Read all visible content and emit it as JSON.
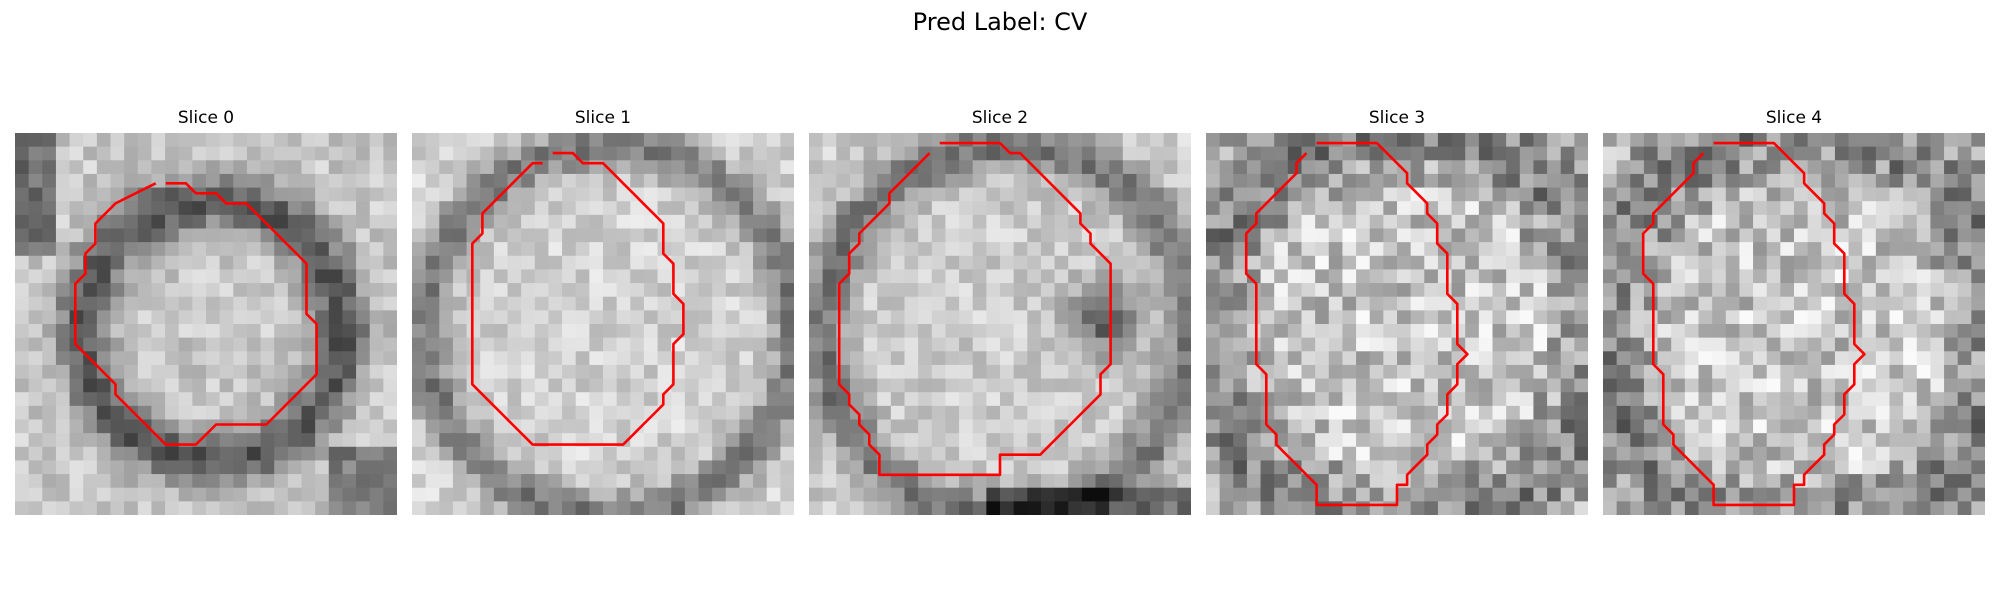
{
  "figure": {
    "title": "Pred Label: CV",
    "contour_color": "#ff0000",
    "colormap": "gray",
    "grid": 28
  },
  "panels": [
    {
      "title": "Slice 0",
      "dark": "ring",
      "seed": 11,
      "contour": [
        [
          10,
          4
        ],
        [
          12,
          4
        ],
        [
          13,
          5
        ],
        [
          15,
          5
        ],
        [
          16,
          6
        ],
        [
          18,
          6
        ],
        [
          20,
          8
        ],
        [
          21,
          9
        ],
        [
          22,
          10
        ],
        [
          23,
          11
        ],
        [
          24,
          12
        ],
        [
          24,
          14
        ],
        [
          24,
          17
        ],
        [
          25,
          18
        ],
        [
          25,
          20
        ],
        [
          25,
          23
        ],
        [
          24,
          24
        ],
        [
          23,
          25
        ],
        [
          22,
          26
        ],
        [
          21,
          27
        ],
        [
          20,
          28
        ],
        [
          19,
          28
        ],
        [
          17,
          28
        ],
        [
          15,
          28
        ],
        [
          14,
          29
        ],
        [
          13,
          30
        ],
        [
          12,
          30
        ],
        [
          10,
          30
        ],
        [
          9,
          29
        ],
        [
          8,
          28
        ],
        [
          7,
          27
        ],
        [
          6,
          26
        ],
        [
          5,
          25
        ],
        [
          5,
          24
        ],
        [
          4,
          23
        ],
        [
          3,
          22
        ],
        [
          2,
          21
        ],
        [
          1,
          20
        ],
        [
          1,
          19
        ],
        [
          1,
          18
        ],
        [
          1,
          16
        ],
        [
          1,
          14
        ],
        [
          2,
          13
        ],
        [
          2,
          11
        ],
        [
          3,
          10
        ],
        [
          3,
          8
        ],
        [
          4,
          7
        ],
        [
          5,
          6
        ],
        [
          7,
          5
        ],
        [
          9,
          4
        ]
      ]
    },
    {
      "title": "Slice 1",
      "dark": "edge",
      "seed": 23,
      "contour": [
        [
          9,
          1
        ],
        [
          11,
          1
        ],
        [
          12,
          2
        ],
        [
          14,
          2
        ],
        [
          15,
          3
        ],
        [
          16,
          4
        ],
        [
          17,
          5
        ],
        [
          18,
          6
        ],
        [
          19,
          7
        ],
        [
          20,
          8
        ],
        [
          20,
          9
        ],
        [
          20,
          11
        ],
        [
          21,
          12
        ],
        [
          21,
          15
        ],
        [
          22,
          16
        ],
        [
          22,
          19
        ],
        [
          21,
          20
        ],
        [
          21,
          22
        ],
        [
          21,
          24
        ],
        [
          20,
          25
        ],
        [
          20,
          26
        ],
        [
          19,
          27
        ],
        [
          18,
          28
        ],
        [
          17,
          29
        ],
        [
          16,
          30
        ],
        [
          15,
          30
        ],
        [
          13,
          30
        ],
        [
          11,
          30
        ],
        [
          9,
          30
        ],
        [
          7,
          30
        ],
        [
          6,
          29
        ],
        [
          5,
          28
        ],
        [
          4,
          27
        ],
        [
          3,
          26
        ],
        [
          2,
          25
        ],
        [
          1,
          24
        ],
        [
          1,
          22
        ],
        [
          1,
          20
        ],
        [
          1,
          18
        ],
        [
          1,
          16
        ],
        [
          1,
          14
        ],
        [
          1,
          12
        ],
        [
          1,
          10
        ],
        [
          2,
          9
        ],
        [
          2,
          7
        ],
        [
          3,
          6
        ],
        [
          4,
          5
        ],
        [
          5,
          4
        ],
        [
          6,
          3
        ],
        [
          7,
          2
        ],
        [
          8,
          2
        ]
      ]
    },
    {
      "title": "Slice 2",
      "dark": "blob",
      "seed": 37,
      "contour": [
        [
          8,
          0
        ],
        [
          10,
          0
        ],
        [
          12,
          0
        ],
        [
          14,
          0
        ],
        [
          15,
          1
        ],
        [
          16,
          1
        ],
        [
          17,
          2
        ],
        [
          18,
          3
        ],
        [
          19,
          4
        ],
        [
          20,
          5
        ],
        [
          21,
          6
        ],
        [
          22,
          7
        ],
        [
          22,
          8
        ],
        [
          23,
          9
        ],
        [
          23,
          10
        ],
        [
          24,
          11
        ],
        [
          25,
          12
        ],
        [
          25,
          14
        ],
        [
          25,
          16
        ],
        [
          25,
          18
        ],
        [
          25,
          20
        ],
        [
          25,
          22
        ],
        [
          24,
          23
        ],
        [
          24,
          25
        ],
        [
          23,
          26
        ],
        [
          22,
          27
        ],
        [
          21,
          28
        ],
        [
          20,
          29
        ],
        [
          19,
          30
        ],
        [
          18,
          31
        ],
        [
          16,
          31
        ],
        [
          14,
          31
        ],
        [
          14,
          33
        ],
        [
          2,
          33
        ],
        [
          2,
          31
        ],
        [
          1,
          30
        ],
        [
          1,
          29
        ],
        [
          0,
          28
        ],
        [
          0,
          27
        ],
        [
          -1,
          26
        ],
        [
          -1,
          25
        ],
        [
          -2,
          24
        ],
        [
          -2,
          22
        ],
        [
          -2,
          20
        ],
        [
          -2,
          18
        ],
        [
          -2,
          16
        ],
        [
          -2,
          14
        ],
        [
          -1,
          13
        ],
        [
          -1,
          11
        ],
        [
          0,
          10
        ],
        [
          0,
          9
        ],
        [
          1,
          8
        ],
        [
          2,
          7
        ],
        [
          3,
          6
        ],
        [
          3,
          5
        ],
        [
          4,
          4
        ],
        [
          5,
          3
        ],
        [
          6,
          2
        ],
        [
          7,
          1
        ]
      ]
    },
    {
      "title": "Slice 3",
      "dark": "noise",
      "seed": 53,
      "contour": [
        [
          6,
          0
        ],
        [
          8,
          0
        ],
        [
          10,
          0
        ],
        [
          12,
          0
        ],
        [
          13,
          1
        ],
        [
          14,
          2
        ],
        [
          15,
          3
        ],
        [
          15,
          4
        ],
        [
          16,
          5
        ],
        [
          17,
          6
        ],
        [
          17,
          7
        ],
        [
          18,
          8
        ],
        [
          18,
          10
        ],
        [
          19,
          11
        ],
        [
          19,
          13
        ],
        [
          19,
          15
        ],
        [
          20,
          16
        ],
        [
          20,
          18
        ],
        [
          20,
          20
        ],
        [
          21,
          21
        ],
        [
          20,
          22
        ],
        [
          20,
          24
        ],
        [
          19,
          25
        ],
        [
          19,
          27
        ],
        [
          18,
          28
        ],
        [
          18,
          29
        ],
        [
          17,
          30
        ],
        [
          17,
          31
        ],
        [
          16,
          32
        ],
        [
          15,
          33
        ],
        [
          15,
          34
        ],
        [
          14,
          34
        ],
        [
          14,
          36
        ],
        [
          6,
          36
        ],
        [
          6,
          34
        ],
        [
          5,
          33
        ],
        [
          4,
          32
        ],
        [
          3,
          31
        ],
        [
          2,
          30
        ],
        [
          2,
          29
        ],
        [
          1,
          28
        ],
        [
          1,
          27
        ],
        [
          1,
          25
        ],
        [
          1,
          23
        ],
        [
          0,
          22
        ],
        [
          0,
          20
        ],
        [
          0,
          18
        ],
        [
          0,
          16
        ],
        [
          0,
          14
        ],
        [
          -1,
          13
        ],
        [
          -1,
          11
        ],
        [
          -1,
          9
        ],
        [
          0,
          8
        ],
        [
          0,
          7
        ],
        [
          1,
          6
        ],
        [
          2,
          5
        ],
        [
          3,
          4
        ],
        [
          4,
          3
        ],
        [
          4,
          2
        ],
        [
          5,
          1
        ]
      ]
    },
    {
      "title": "Slice 4",
      "dark": "noise",
      "seed": 71,
      "contour": [
        [
          6,
          0
        ],
        [
          8,
          0
        ],
        [
          10,
          0
        ],
        [
          12,
          0
        ],
        [
          13,
          1
        ],
        [
          14,
          2
        ],
        [
          15,
          3
        ],
        [
          15,
          4
        ],
        [
          16,
          5
        ],
        [
          17,
          6
        ],
        [
          17,
          7
        ],
        [
          18,
          8
        ],
        [
          18,
          10
        ],
        [
          19,
          11
        ],
        [
          19,
          13
        ],
        [
          19,
          15
        ],
        [
          20,
          16
        ],
        [
          20,
          18
        ],
        [
          20,
          20
        ],
        [
          21,
          21
        ],
        [
          20,
          22
        ],
        [
          20,
          24
        ],
        [
          19,
          25
        ],
        [
          19,
          27
        ],
        [
          18,
          28
        ],
        [
          18,
          29
        ],
        [
          17,
          30
        ],
        [
          17,
          31
        ],
        [
          16,
          32
        ],
        [
          15,
          33
        ],
        [
          15,
          34
        ],
        [
          14,
          34
        ],
        [
          14,
          36
        ],
        [
          6,
          36
        ],
        [
          6,
          34
        ],
        [
          5,
          33
        ],
        [
          4,
          32
        ],
        [
          3,
          31
        ],
        [
          2,
          30
        ],
        [
          2,
          29
        ],
        [
          1,
          28
        ],
        [
          1,
          27
        ],
        [
          1,
          25
        ],
        [
          1,
          23
        ],
        [
          0,
          22
        ],
        [
          0,
          20
        ],
        [
          0,
          18
        ],
        [
          0,
          16
        ],
        [
          0,
          14
        ],
        [
          -1,
          13
        ],
        [
          -1,
          11
        ],
        [
          -1,
          9
        ],
        [
          0,
          8
        ],
        [
          0,
          7
        ],
        [
          1,
          6
        ],
        [
          2,
          5
        ],
        [
          3,
          4
        ],
        [
          4,
          3
        ],
        [
          4,
          2
        ],
        [
          5,
          1
        ]
      ]
    }
  ]
}
